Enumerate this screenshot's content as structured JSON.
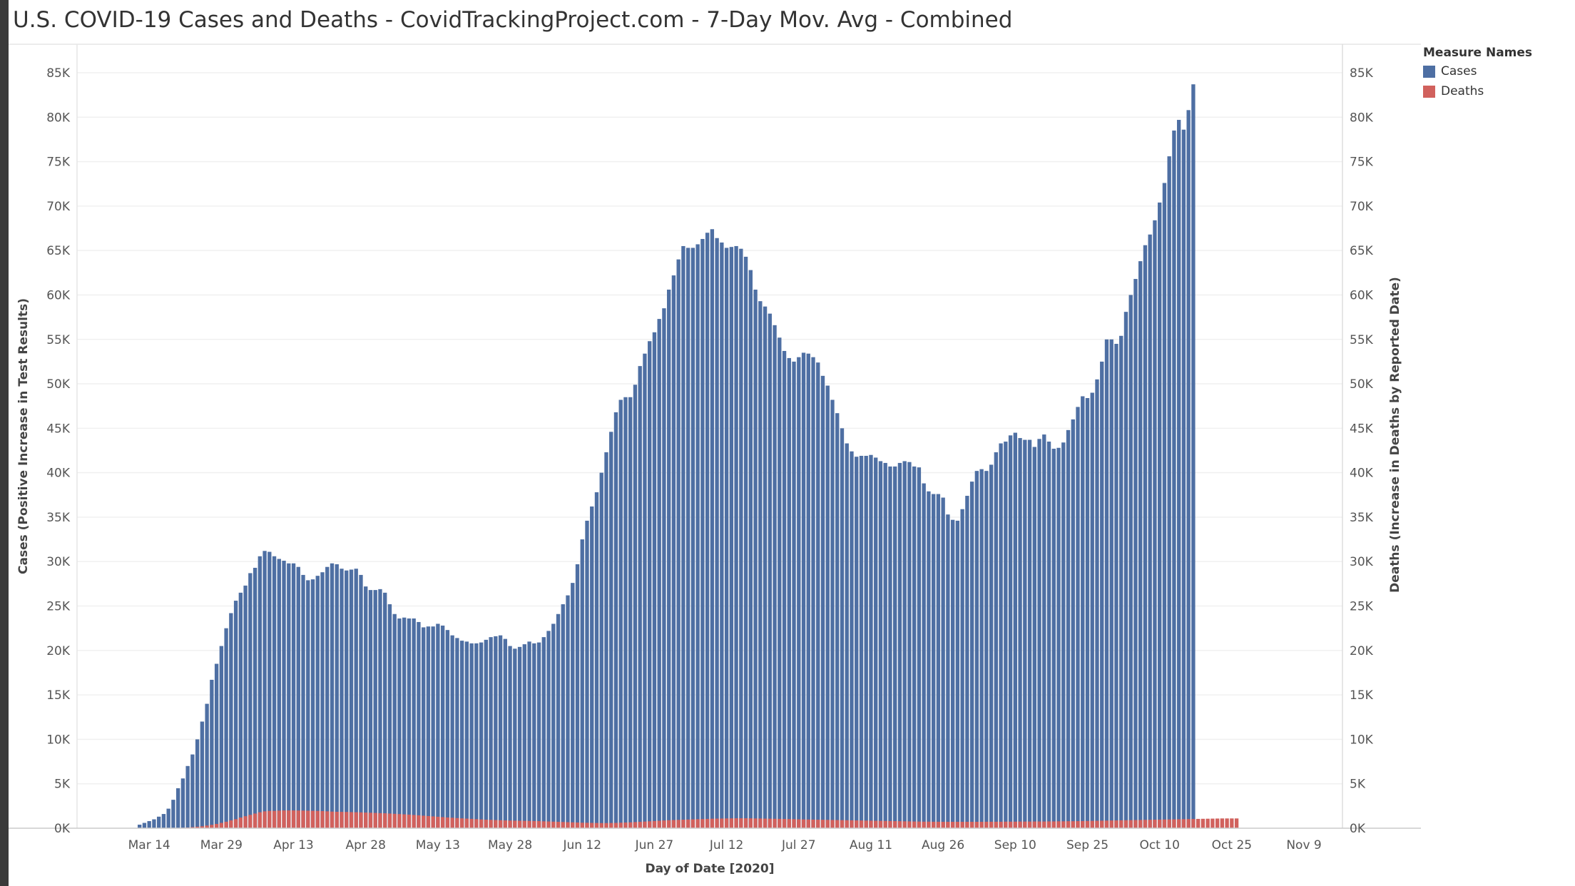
{
  "chart_data": {
    "type": "bar",
    "title": "U.S. COVID-19 Cases and Deaths - CovidTrackingProject.com - 7-Day Mov. Avg - Combined",
    "xlabel": "Day of Date [2020]",
    "ylabel_left": "Cases (Positive Increase in Test Results)",
    "ylabel_right": "Deaths (Increase in Deaths by Reported Date)",
    "ylim": [
      0,
      85000
    ],
    "yticks": [
      0,
      5000,
      10000,
      15000,
      20000,
      25000,
      30000,
      35000,
      40000,
      45000,
      50000,
      55000,
      60000,
      65000,
      70000,
      75000,
      80000,
      85000
    ],
    "ytick_labels": [
      "0K",
      "5K",
      "10K",
      "15K",
      "20K",
      "25K",
      "30K",
      "35K",
      "40K",
      "45K",
      "50K",
      "55K",
      "60K",
      "65K",
      "70K",
      "75K",
      "80K",
      "85K"
    ],
    "xticks": [
      {
        "label": "Mar 14",
        "date": "2020-03-14"
      },
      {
        "label": "Mar 29",
        "date": "2020-03-29"
      },
      {
        "label": "Apr 13",
        "date": "2020-04-13"
      },
      {
        "label": "Apr 28",
        "date": "2020-04-28"
      },
      {
        "label": "May 13",
        "date": "2020-05-13"
      },
      {
        "label": "May 28",
        "date": "2020-05-28"
      },
      {
        "label": "Jun 12",
        "date": "2020-06-12"
      },
      {
        "label": "Jun 27",
        "date": "2020-06-27"
      },
      {
        "label": "Jul 12",
        "date": "2020-07-12"
      },
      {
        "label": "Jul 27",
        "date": "2020-07-27"
      },
      {
        "label": "Aug 11",
        "date": "2020-08-11"
      },
      {
        "label": "Aug 26",
        "date": "2020-08-26"
      },
      {
        "label": "Sep 10",
        "date": "2020-09-10"
      },
      {
        "label": "Sep 25",
        "date": "2020-09-25"
      },
      {
        "label": "Oct 10",
        "date": "2020-10-10"
      },
      {
        "label": "Oct 25",
        "date": "2020-10-25"
      },
      {
        "label": "Nov 9",
        "date": "2020-11-09"
      }
    ],
    "x_range": [
      "2020-02-28",
      "2020-11-17"
    ],
    "first_date": "2020-03-12",
    "legend_title": "Measure Names",
    "legend_position": "top-right",
    "grid": true,
    "series": [
      {
        "name": "Cases",
        "color": "#4e6fa3",
        "values": [
          400,
          600,
          800,
          1000,
          1300,
          1600,
          2200,
          3200,
          4500,
          5600,
          7000,
          8300,
          10000,
          12000,
          14000,
          16700,
          18500,
          20500,
          22500,
          24200,
          25600,
          26500,
          27300,
          28700,
          29300,
          30600,
          31200,
          31100,
          30600,
          30300,
          30100,
          29800,
          29800,
          29400,
          28500,
          27900,
          28000,
          28400,
          28800,
          29400,
          29800,
          29700,
          29200,
          29000,
          29100,
          29200,
          28500,
          27200,
          26800,
          26800,
          26900,
          26500,
          25200,
          24100,
          23600,
          23700,
          23600,
          23600,
          23200,
          22600,
          22700,
          22700,
          23000,
          22800,
          22300,
          21700,
          21400,
          21100,
          21000,
          20800,
          20800,
          20900,
          21200,
          21500,
          21600,
          21700,
          21300,
          20500,
          20200,
          20400,
          20700,
          21000,
          20800,
          20900,
          21500,
          22200,
          23000,
          24100,
          25200,
          26200,
          27600,
          29700,
          32500,
          34600,
          36200,
          37800,
          40000,
          42300,
          44600,
          46800,
          48200,
          48500,
          48500,
          49900,
          52000,
          53400,
          54800,
          55800,
          57300,
          58500,
          60600,
          62200,
          64000,
          65500,
          65300,
          65300,
          65700,
          66300,
          67000,
          67400,
          66400,
          65900,
          65300,
          65400,
          65500,
          65200,
          64300,
          62800,
          60600,
          59300,
          58700,
          57900,
          56600,
          55200,
          53700,
          52900,
          52500,
          53000,
          53500,
          53400,
          53000,
          52400,
          50900,
          49800,
          48200,
          46700,
          45000,
          43300,
          42400,
          41800,
          41900,
          41900,
          42000,
          41700,
          41300,
          41100,
          40700,
          40700,
          41100,
          41300,
          41200,
          40700,
          40600,
          38800,
          37900,
          37600,
          37600,
          37200,
          35300,
          34700,
          34600,
          35900,
          37400,
          39000,
          40200,
          40400,
          40200,
          40900,
          42300,
          43300,
          43500,
          44200,
          44500,
          43900,
          43700,
          43700,
          42900,
          43800,
          44300,
          43500,
          42700,
          42800,
          43400,
          44800,
          46000,
          47400,
          48600,
          48400,
          49000,
          50500,
          52500,
          55000,
          55000,
          54500,
          55400,
          58100,
          60000,
          61800,
          63800,
          65600,
          66800,
          68400,
          70400,
          72600,
          75600,
          78500,
          79700,
          78600,
          80800,
          83700
        ]
      },
      {
        "name": "Deaths",
        "color": "#d1615d",
        "values": [
          0,
          0,
          0,
          0,
          0,
          0,
          10,
          20,
          30,
          50,
          80,
          120,
          170,
          220,
          300,
          380,
          480,
          600,
          730,
          880,
          1020,
          1200,
          1350,
          1500,
          1650,
          1800,
          1900,
          1950,
          1950,
          1980,
          2000,
          2000,
          2000,
          1990,
          1980,
          1970,
          1960,
          1950,
          1930,
          1900,
          1870,
          1850,
          1840,
          1830,
          1810,
          1800,
          1780,
          1760,
          1740,
          1720,
          1700,
          1680,
          1650,
          1620,
          1590,
          1560,
          1530,
          1490,
          1450,
          1410,
          1370,
          1330,
          1290,
          1250,
          1210,
          1180,
          1140,
          1110,
          1080,
          1050,
          1020,
          990,
          960,
          940,
          920,
          900,
          880,
          860,
          850,
          840,
          830,
          820,
          810,
          800,
          780,
          760,
          740,
          720,
          700,
          680,
          660,
          640,
          620,
          610,
          600,
          590,
          580,
          580,
          590,
          600,
          620,
          640,
          660,
          690,
          720,
          750,
          780,
          810,
          840,
          870,
          900,
          920,
          940,
          960,
          980,
          1000,
          1020,
          1030,
          1050,
          1070,
          1080,
          1090,
          1100,
          1110,
          1120,
          1120,
          1120,
          1110,
          1100,
          1090,
          1080,
          1070,
          1060,
          1050,
          1040,
          1030,
          1020,
          1000,
          990,
          980,
          970,
          960,
          950,
          940,
          930,
          920,
          910,
          900,
          890,
          880,
          870,
          860,
          850,
          840,
          830,
          820,
          810,
          800,
          790,
          780,
          770,
          760,
          750,
          740,
          740,
          730,
          730,
          720,
          720,
          720,
          720,
          720,
          720,
          720,
          720,
          720,
          730,
          730,
          730,
          730,
          740,
          740,
          740,
          750,
          750,
          750,
          760,
          760,
          760,
          770,
          770,
          780,
          780,
          790,
          790,
          800,
          810,
          820,
          830,
          840,
          850,
          860,
          870,
          880,
          890,
          900,
          910,
          920,
          930,
          940,
          950,
          960,
          970,
          980,
          990,
          1000,
          1010,
          1020,
          1030,
          1040,
          1050,
          1060,
          1070,
          1080,
          1090,
          1100,
          1100,
          1100,
          1100
        ]
      }
    ]
  }
}
